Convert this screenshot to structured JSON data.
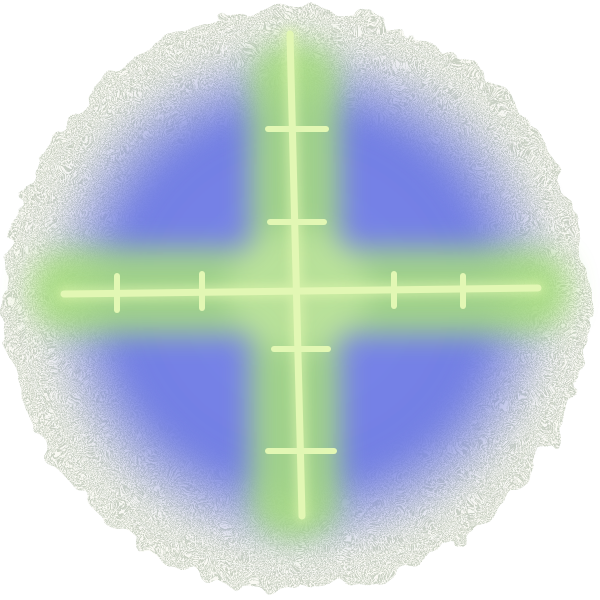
{
  "image": {
    "subject": "crosshair-scope-reticle",
    "colors": {
      "background": "#ffffff",
      "speckle_rim": "#8f9a88",
      "blue_field": "#7480e6",
      "glow": "#b8f28a",
      "crosshair": "#ddf7a8"
    }
  }
}
